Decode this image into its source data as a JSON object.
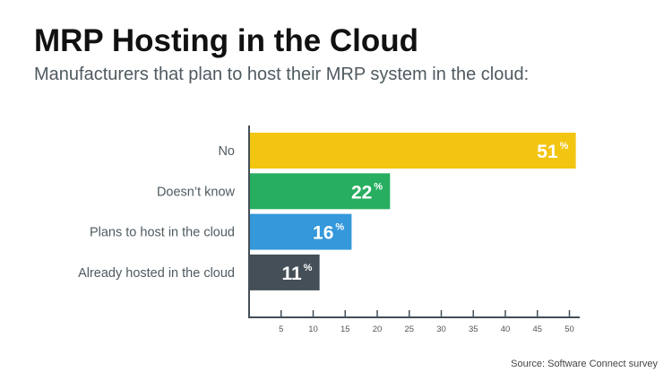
{
  "chart_data": {
    "type": "bar",
    "orientation": "horizontal",
    "title": "MRP Hosting in the Cloud",
    "subtitle": "Manufacturers that plan to host their MRP system in the cloud:",
    "categories": [
      "No",
      "Doesn’t know",
      "Plans to host in the cloud",
      "Already hosted in the cloud"
    ],
    "values": [
      51,
      22,
      16,
      11
    ],
    "value_labels": [
      "51",
      "22",
      "16",
      "11"
    ],
    "value_suffix": "%",
    "colors": [
      "#F2C511",
      "#27AE60",
      "#3498DB",
      "#444F57"
    ],
    "xticks": [
      5,
      10,
      15,
      20,
      25,
      30,
      35,
      40,
      45,
      50
    ],
    "xlim": [
      0,
      51.5
    ],
    "grid": false,
    "source": "Source: Software Connect survey"
  }
}
